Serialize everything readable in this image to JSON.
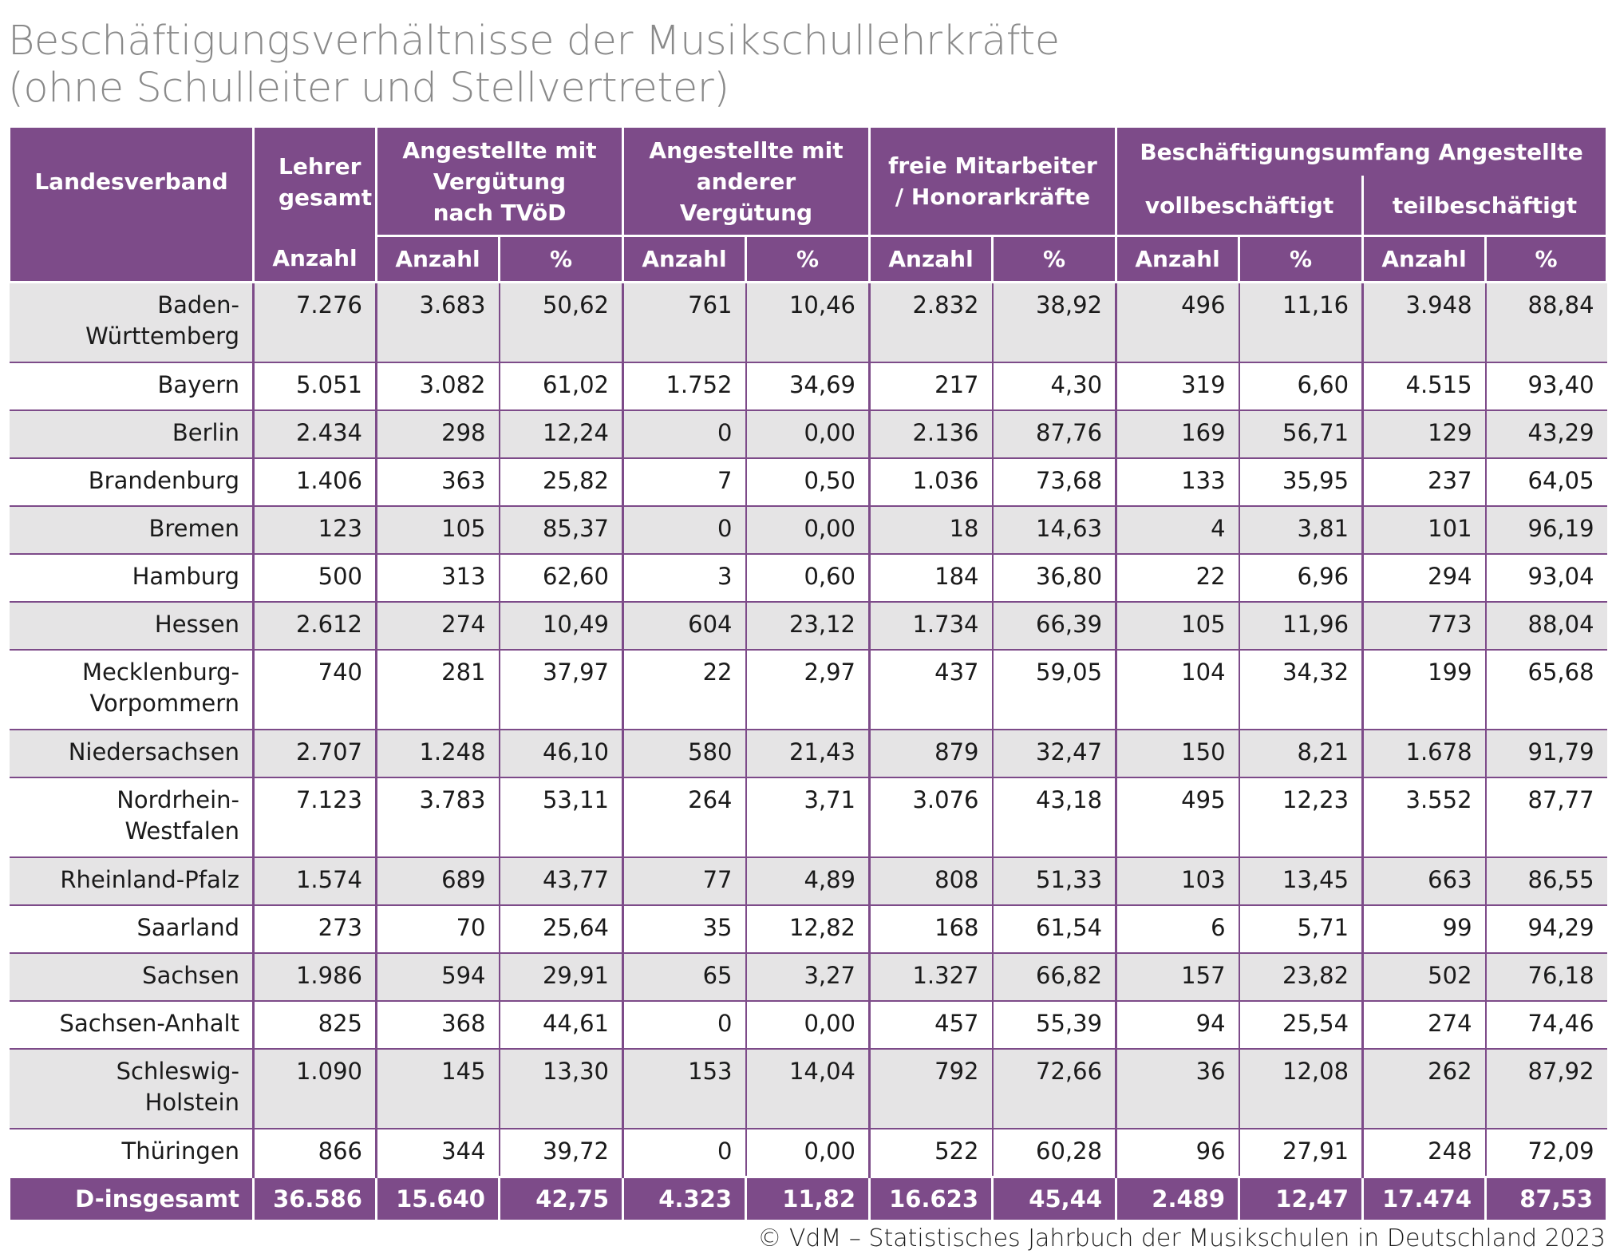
{
  "title_line1": "Beschäftigungsverhältnisse der Musikschullehrkräfte",
  "title_line2": "(ohne Schulleiter und Stellvertreter)",
  "header": {
    "landesverband": "Landesverband",
    "lehrer_gesamt": "Lehrer gesamt",
    "tvoed": "Angestellte mit Vergütung nach TVöD",
    "andere": "Angestellte mit anderer Vergütung",
    "freie": "freie Mitarbeiter / Honorarkräfte",
    "umfang": "Beschäftigungsumfang Angestellte",
    "voll": "vollbeschäftigt",
    "teil": "teilbeschäftigt",
    "anzahl": "Anzahl",
    "prozent": "%"
  },
  "rows": [
    {
      "name1": "Baden-",
      "name2": "Württemberg",
      "v": [
        "7.276",
        "3.683",
        "50,62",
        "761",
        "10,46",
        "2.832",
        "38,92",
        "496",
        "11,16",
        "3.948",
        "88,84"
      ]
    },
    {
      "name1": "Bayern",
      "name2": "",
      "v": [
        "5.051",
        "3.082",
        "61,02",
        "1.752",
        "34,69",
        "217",
        "4,30",
        "319",
        "6,60",
        "4.515",
        "93,40"
      ]
    },
    {
      "name1": "Berlin",
      "name2": "",
      "v": [
        "2.434",
        "298",
        "12,24",
        "0",
        "0,00",
        "2.136",
        "87,76",
        "169",
        "56,71",
        "129",
        "43,29"
      ]
    },
    {
      "name1": "Brandenburg",
      "name2": "",
      "v": [
        "1.406",
        "363",
        "25,82",
        "7",
        "0,50",
        "1.036",
        "73,68",
        "133",
        "35,95",
        "237",
        "64,05"
      ]
    },
    {
      "name1": "Bremen",
      "name2": "",
      "v": [
        "123",
        "105",
        "85,37",
        "0",
        "0,00",
        "18",
        "14,63",
        "4",
        "3,81",
        "101",
        "96,19"
      ]
    },
    {
      "name1": "Hamburg",
      "name2": "",
      "v": [
        "500",
        "313",
        "62,60",
        "3",
        "0,60",
        "184",
        "36,80",
        "22",
        "6,96",
        "294",
        "93,04"
      ]
    },
    {
      "name1": "Hessen",
      "name2": "",
      "v": [
        "2.612",
        "274",
        "10,49",
        "604",
        "23,12",
        "1.734",
        "66,39",
        "105",
        "11,96",
        "773",
        "88,04"
      ]
    },
    {
      "name1": "Mecklenburg-",
      "name2": "Vorpommern",
      "v": [
        "740",
        "281",
        "37,97",
        "22",
        "2,97",
        "437",
        "59,05",
        "104",
        "34,32",
        "199",
        "65,68"
      ]
    },
    {
      "name1": "Niedersachsen",
      "name2": "",
      "v": [
        "2.707",
        "1.248",
        "46,10",
        "580",
        "21,43",
        "879",
        "32,47",
        "150",
        "8,21",
        "1.678",
        "91,79"
      ]
    },
    {
      "name1": "Nordrhein-",
      "name2": "Westfalen",
      "v": [
        "7.123",
        "3.783",
        "53,11",
        "264",
        "3,71",
        "3.076",
        "43,18",
        "495",
        "12,23",
        "3.552",
        "87,77"
      ]
    },
    {
      "name1": "Rheinland-Pfalz",
      "name2": "",
      "v": [
        "1.574",
        "689",
        "43,77",
        "77",
        "4,89",
        "808",
        "51,33",
        "103",
        "13,45",
        "663",
        "86,55"
      ]
    },
    {
      "name1": "Saarland",
      "name2": "",
      "v": [
        "273",
        "70",
        "25,64",
        "35",
        "12,82",
        "168",
        "61,54",
        "6",
        "5,71",
        "99",
        "94,29"
      ]
    },
    {
      "name1": "Sachsen",
      "name2": "",
      "v": [
        "1.986",
        "594",
        "29,91",
        "65",
        "3,27",
        "1.327",
        "66,82",
        "157",
        "23,82",
        "502",
        "76,18"
      ]
    },
    {
      "name1": "Sachsen-Anhalt",
      "name2": "",
      "v": [
        "825",
        "368",
        "44,61",
        "0",
        "0,00",
        "457",
        "55,39",
        "94",
        "25,54",
        "274",
        "74,46"
      ]
    },
    {
      "name1": "Schleswig-",
      "name2": "Holstein",
      "v": [
        "1.090",
        "145",
        "13,30",
        "153",
        "14,04",
        "792",
        "72,66",
        "36",
        "12,08",
        "262",
        "87,92"
      ]
    },
    {
      "name1": "Thüringen",
      "name2": "",
      "v": [
        "866",
        "344",
        "39,72",
        "0",
        "0,00",
        "522",
        "60,28",
        "96",
        "27,91",
        "248",
        "72,09"
      ]
    }
  ],
  "total": {
    "name": "D-insgesamt",
    "v": [
      "36.586",
      "15.640",
      "42,75",
      "4.323",
      "11,82",
      "16.623",
      "45,44",
      "2.489",
      "12,47",
      "17.474",
      "87,53"
    ]
  },
  "footer": "© VdM – Statistisches Jahrbuch der Musikschulen in Deutschland 2023"
}
